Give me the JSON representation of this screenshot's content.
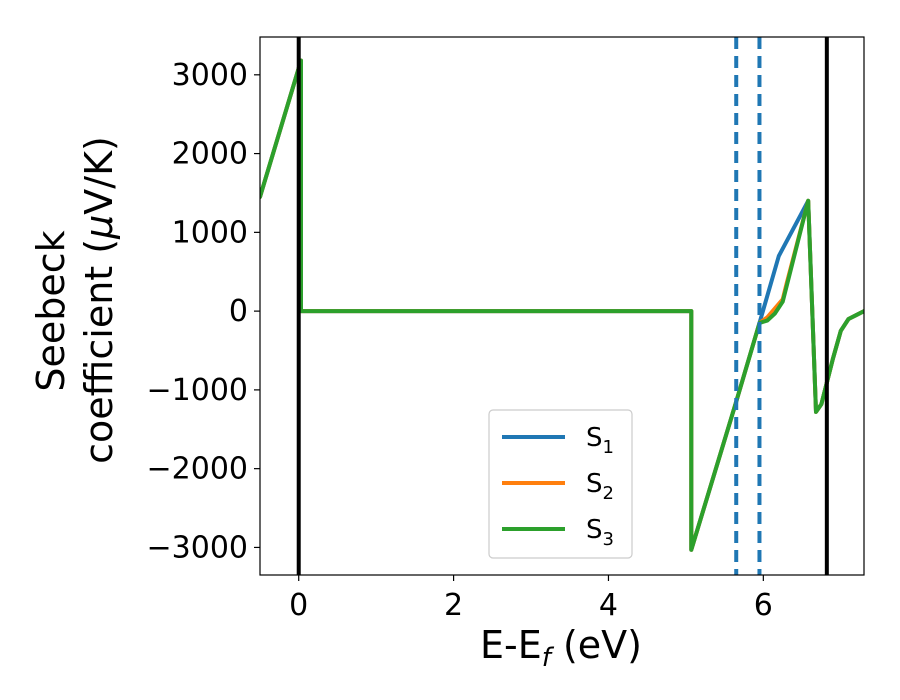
{
  "chart_data": {
    "type": "line",
    "xlabel": "E-E",
    "xlabel_sub": "f",
    "xlabel_unit": " (eV)",
    "ylabel_line1": "Seebeck",
    "ylabel_line2_prefix": "coefficient  (",
    "ylabel_mu": "μ",
    "ylabel_line2_suffix": "V/K)",
    "xlim": [
      -0.5,
      7.3
    ],
    "ylim": [
      -3350,
      3480
    ],
    "xticks": [
      0,
      2,
      4,
      6
    ],
    "xtick_labels": [
      "0",
      "2",
      "4",
      "6"
    ],
    "yticks": [
      3000,
      2000,
      1000,
      0,
      -1000,
      -2000,
      -3000
    ],
    "ytick_labels": [
      "3000",
      "2000",
      "1000",
      "0",
      "−1000",
      "−2000",
      "−3000"
    ],
    "vlines_solid": [
      0.0,
      6.82
    ],
    "vlines_dashed": [
      5.65,
      5.95
    ],
    "legend_position": "lower center",
    "colors": {
      "S1": "#1f77b4",
      "S2": "#ff7f0e",
      "S3": "#2ca02c",
      "black": "#000000"
    },
    "series": [
      {
        "name": "S",
        "sub": "1",
        "color": "#1f77b4",
        "x": [
          -0.5,
          0.03,
          0.03,
          5.07,
          5.07,
          5.65,
          5.95,
          6.2,
          6.58,
          6.68,
          6.75,
          6.9,
          7.0,
          7.1,
          7.2,
          7.3
        ],
        "y": [
          1450,
          3180,
          0,
          0,
          -3030,
          -1150,
          -150,
          700,
          1400,
          -1280,
          -1180,
          -600,
          -250,
          -100,
          -50,
          0
        ]
      },
      {
        "name": "S",
        "sub": "2",
        "color": "#ff7f0e",
        "x": [
          -0.5,
          0.03,
          0.03,
          5.07,
          5.07,
          5.65,
          5.95,
          6.05,
          6.25,
          6.3,
          6.58,
          6.68,
          6.75,
          6.9,
          7.0,
          7.1,
          7.2,
          7.3
        ],
        "y": [
          1450,
          3180,
          0,
          0,
          -3030,
          -1150,
          -150,
          -80,
          150,
          350,
          1400,
          -1280,
          -1180,
          -600,
          -250,
          -100,
          -50,
          0
        ]
      },
      {
        "name": "S",
        "sub": "3",
        "color": "#2ca02c",
        "x": [
          -0.5,
          0.03,
          0.03,
          5.07,
          5.07,
          5.65,
          5.95,
          6.05,
          6.15,
          6.25,
          6.58,
          6.68,
          6.75,
          6.9,
          7.0,
          7.1,
          7.2,
          7.3
        ],
        "y": [
          1450,
          3180,
          0,
          0,
          -3030,
          -1150,
          -150,
          -120,
          -30,
          120,
          1400,
          -1280,
          -1180,
          -600,
          -250,
          -100,
          -50,
          0
        ]
      }
    ]
  }
}
